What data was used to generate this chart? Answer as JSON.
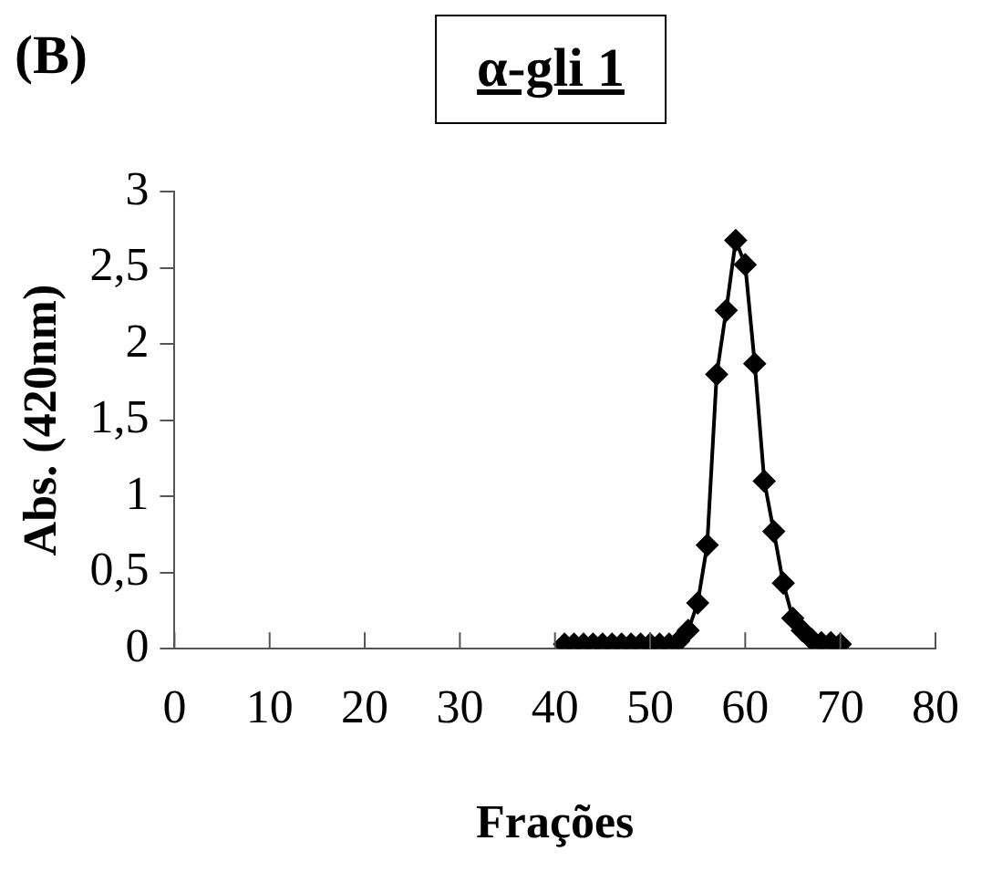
{
  "chart_data": {
    "type": "line",
    "title": "α-gli 1",
    "xlabel": "Frações",
    "ylabel": "Abs. (420nm)",
    "annotations": [
      "(B)"
    ],
    "x": [
      41,
      42,
      43,
      44,
      45,
      46,
      47,
      48,
      49,
      50,
      51,
      52,
      53,
      54,
      55,
      56,
      57,
      58,
      59,
      60,
      61,
      62,
      63,
      64,
      65,
      66,
      67,
      68,
      69,
      70
    ],
    "series": [
      {
        "color": "#000000",
        "values": [
          0.03,
          0.03,
          0.03,
          0.03,
          0.03,
          0.03,
          0.03,
          0.03,
          0.03,
          0.03,
          0.03,
          0.03,
          0.05,
          0.12,
          0.3,
          0.68,
          1.8,
          2.22,
          2.68,
          2.52,
          1.87,
          1.1,
          0.77,
          0.43,
          0.2,
          0.12,
          0.06,
          0.04,
          0.04,
          0.03
        ]
      }
    ],
    "xlim": [
      0,
      80
    ],
    "xticks": [
      0,
      10,
      20,
      30,
      40,
      50,
      60,
      70,
      80
    ],
    "ylim": [
      0,
      3
    ],
    "yticks": [
      0,
      {
        "value": 0.5,
        "label": "0,5"
      },
      1,
      {
        "value": 1.5,
        "label": "1,5"
      },
      2,
      {
        "value": 2.5,
        "label": "2,5"
      },
      3
    ],
    "grid": false,
    "legend": false,
    "marker": "diamond",
    "line_style": "solid"
  }
}
